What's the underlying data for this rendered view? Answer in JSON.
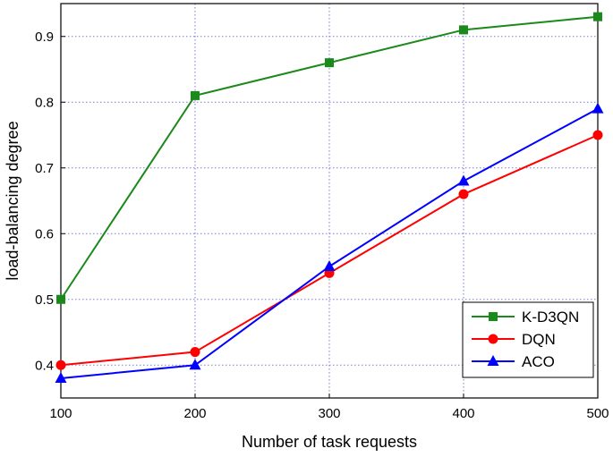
{
  "chart_data": {
    "type": "line",
    "title": "",
    "xlabel": "Number of task requests",
    "ylabel": "load-balancing degree",
    "x": [
      100,
      200,
      300,
      400,
      500
    ],
    "xlim": [
      100,
      500
    ],
    "ylim": [
      0.35,
      0.95
    ],
    "xticks": [
      "100",
      "200",
      "300",
      "400",
      "500"
    ],
    "yticks": [
      "0.4",
      "0.5",
      "0.6",
      "0.7",
      "0.8",
      "0.9"
    ],
    "grid": true,
    "legend_position": "bottom-right",
    "series": [
      {
        "name": "K-D3QN",
        "color": "#1a8a1a",
        "marker": "square",
        "values": [
          0.5,
          0.81,
          0.86,
          0.91,
          0.93
        ]
      },
      {
        "name": "DQN",
        "color": "#ff0000",
        "marker": "circle",
        "values": [
          0.4,
          0.42,
          0.54,
          0.66,
          0.75
        ]
      },
      {
        "name": "ACO",
        "color": "#0000ff",
        "marker": "triangle",
        "values": [
          0.38,
          0.4,
          0.55,
          0.68,
          0.79
        ]
      }
    ]
  }
}
